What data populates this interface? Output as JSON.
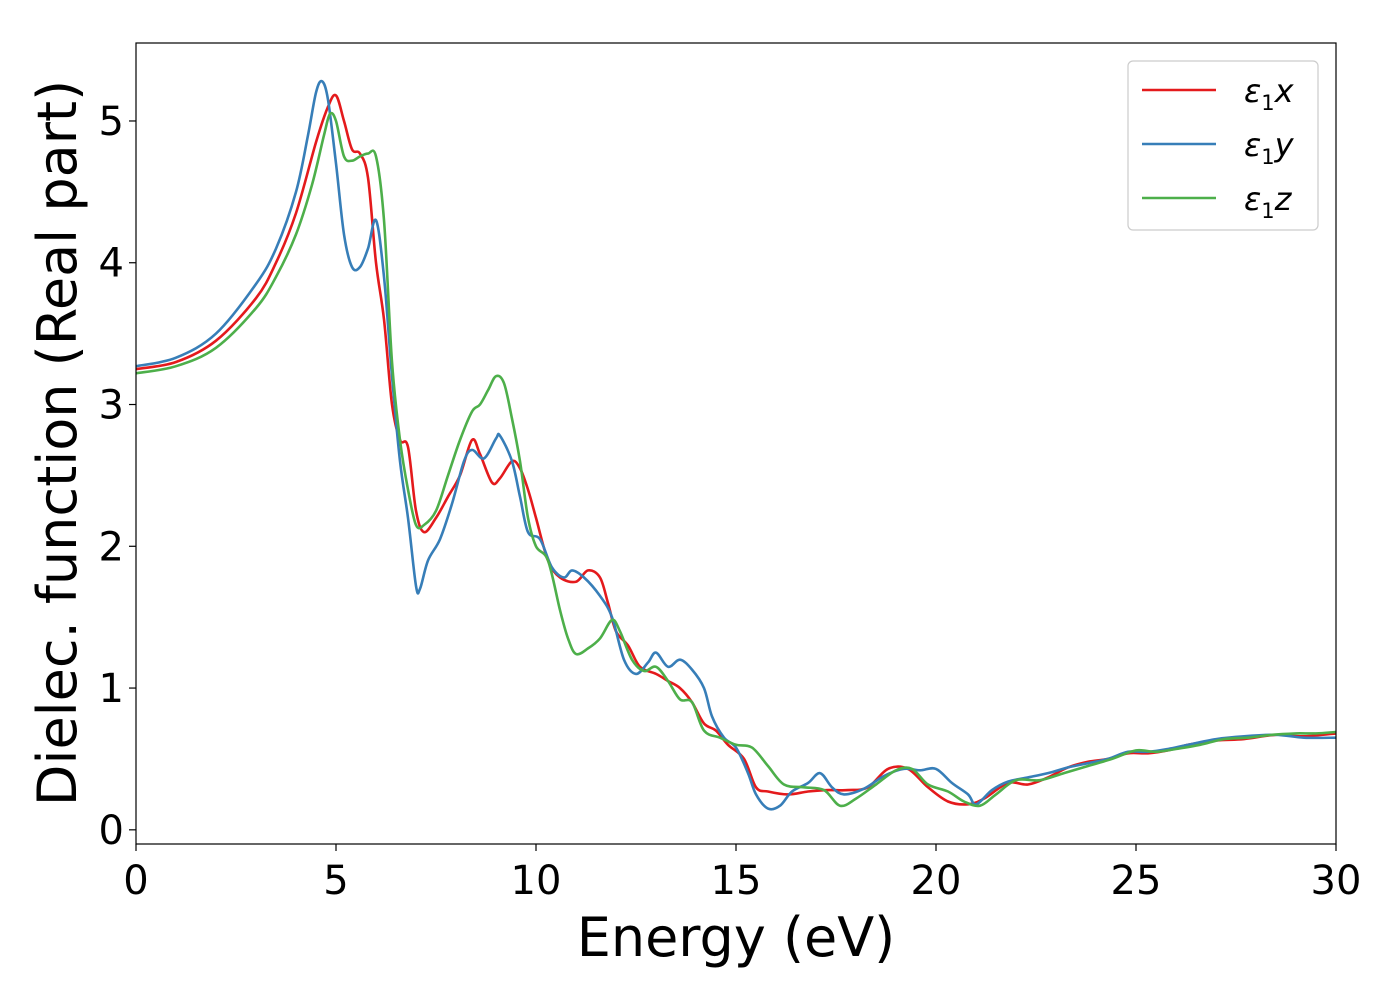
{
  "chart_data": {
    "type": "line",
    "xlabel": "Energy (eV)",
    "ylabel": "Dielec. function (Real part)",
    "xlim": [
      0,
      30
    ],
    "ylim": [
      -0.1,
      5.55
    ],
    "xticks": [
      0,
      5,
      10,
      15,
      20,
      25,
      30
    ],
    "yticks": [
      0,
      1,
      2,
      3,
      4,
      5
    ],
    "grid": false,
    "legend_position": "top-right",
    "series": [
      {
        "name": "ε1x",
        "legend": {
          "base": "ε",
          "sub": "1",
          "var": "x"
        },
        "color": "#e41a1c",
        "points": [
          [
            0,
            3.25
          ],
          [
            1,
            3.3
          ],
          [
            2,
            3.45
          ],
          [
            3,
            3.75
          ],
          [
            3.5,
            4.0
          ],
          [
            4,
            4.35
          ],
          [
            4.5,
            4.85
          ],
          [
            4.8,
            5.1
          ],
          [
            5.0,
            5.18
          ],
          [
            5.2,
            5.0
          ],
          [
            5.4,
            4.8
          ],
          [
            5.6,
            4.77
          ],
          [
            5.8,
            4.6
          ],
          [
            6.0,
            4.0
          ],
          [
            6.2,
            3.6
          ],
          [
            6.4,
            3.0
          ],
          [
            6.6,
            2.75
          ],
          [
            6.8,
            2.7
          ],
          [
            7.0,
            2.25
          ],
          [
            7.2,
            2.1
          ],
          [
            7.5,
            2.2
          ],
          [
            7.8,
            2.35
          ],
          [
            8.1,
            2.5
          ],
          [
            8.4,
            2.75
          ],
          [
            8.6,
            2.65
          ],
          [
            8.9,
            2.45
          ],
          [
            9.1,
            2.48
          ],
          [
            9.4,
            2.6
          ],
          [
            9.6,
            2.55
          ],
          [
            9.8,
            2.4
          ],
          [
            10.0,
            2.2
          ],
          [
            10.3,
            1.9
          ],
          [
            10.6,
            1.78
          ],
          [
            11.0,
            1.75
          ],
          [
            11.3,
            1.83
          ],
          [
            11.6,
            1.78
          ],
          [
            11.8,
            1.6
          ],
          [
            12.0,
            1.4
          ],
          [
            12.3,
            1.3
          ],
          [
            12.6,
            1.15
          ],
          [
            13.0,
            1.1
          ],
          [
            13.3,
            1.05
          ],
          [
            13.6,
            1.0
          ],
          [
            13.9,
            0.9
          ],
          [
            14.2,
            0.75
          ],
          [
            14.5,
            0.7
          ],
          [
            14.8,
            0.6
          ],
          [
            15.2,
            0.5
          ],
          [
            15.5,
            0.3
          ],
          [
            15.8,
            0.27
          ],
          [
            16.3,
            0.25
          ],
          [
            16.8,
            0.27
          ],
          [
            17.3,
            0.28
          ],
          [
            17.8,
            0.28
          ],
          [
            18.3,
            0.3
          ],
          [
            18.8,
            0.43
          ],
          [
            19.3,
            0.43
          ],
          [
            19.8,
            0.3
          ],
          [
            20.3,
            0.2
          ],
          [
            20.8,
            0.18
          ],
          [
            21.2,
            0.22
          ],
          [
            21.8,
            0.33
          ],
          [
            22.3,
            0.32
          ],
          [
            22.8,
            0.37
          ],
          [
            23.3,
            0.44
          ],
          [
            23.8,
            0.48
          ],
          [
            24.3,
            0.5
          ],
          [
            24.8,
            0.54
          ],
          [
            25.3,
            0.54
          ],
          [
            25.8,
            0.56
          ],
          [
            26.3,
            0.6
          ],
          [
            27,
            0.63
          ],
          [
            27.7,
            0.64
          ],
          [
            28.5,
            0.67
          ],
          [
            29.2,
            0.66
          ],
          [
            30,
            0.68
          ]
        ]
      },
      {
        "name": "ε1y",
        "legend": {
          "base": "ε",
          "sub": "1",
          "var": "y"
        },
        "color": "#377eb8",
        "points": [
          [
            0,
            3.27
          ],
          [
            1,
            3.33
          ],
          [
            2,
            3.5
          ],
          [
            3,
            3.85
          ],
          [
            3.5,
            4.1
          ],
          [
            4,
            4.5
          ],
          [
            4.3,
            4.9
          ],
          [
            4.5,
            5.2
          ],
          [
            4.65,
            5.28
          ],
          [
            4.8,
            5.15
          ],
          [
            5.0,
            4.7
          ],
          [
            5.2,
            4.2
          ],
          [
            5.4,
            3.97
          ],
          [
            5.6,
            3.97
          ],
          [
            5.8,
            4.1
          ],
          [
            6.0,
            4.3
          ],
          [
            6.2,
            3.9
          ],
          [
            6.4,
            3.2
          ],
          [
            6.6,
            2.6
          ],
          [
            6.8,
            2.2
          ],
          [
            7.0,
            1.72
          ],
          [
            7.1,
            1.7
          ],
          [
            7.3,
            1.9
          ],
          [
            7.6,
            2.05
          ],
          [
            7.9,
            2.3
          ],
          [
            8.2,
            2.6
          ],
          [
            8.4,
            2.68
          ],
          [
            8.7,
            2.62
          ],
          [
            9.0,
            2.76
          ],
          [
            9.1,
            2.78
          ],
          [
            9.4,
            2.6
          ],
          [
            9.6,
            2.35
          ],
          [
            9.8,
            2.1
          ],
          [
            10.1,
            2.05
          ],
          [
            10.4,
            1.85
          ],
          [
            10.7,
            1.78
          ],
          [
            10.9,
            1.83
          ],
          [
            11.2,
            1.78
          ],
          [
            11.6,
            1.65
          ],
          [
            11.9,
            1.5
          ],
          [
            12.2,
            1.2
          ],
          [
            12.5,
            1.1
          ],
          [
            12.8,
            1.18
          ],
          [
            13.0,
            1.25
          ],
          [
            13.3,
            1.15
          ],
          [
            13.6,
            1.2
          ],
          [
            13.9,
            1.13
          ],
          [
            14.2,
            1.0
          ],
          [
            14.4,
            0.8
          ],
          [
            14.7,
            0.65
          ],
          [
            15.0,
            0.58
          ],
          [
            15.3,
            0.4
          ],
          [
            15.5,
            0.25
          ],
          [
            15.8,
            0.15
          ],
          [
            16.1,
            0.17
          ],
          [
            16.4,
            0.27
          ],
          [
            16.8,
            0.33
          ],
          [
            17.1,
            0.4
          ],
          [
            17.4,
            0.3
          ],
          [
            17.7,
            0.25
          ],
          [
            18.2,
            0.29
          ],
          [
            18.7,
            0.38
          ],
          [
            19.2,
            0.43
          ],
          [
            19.6,
            0.42
          ],
          [
            20.0,
            0.43
          ],
          [
            20.4,
            0.33
          ],
          [
            20.8,
            0.25
          ],
          [
            21.0,
            0.18
          ],
          [
            21.4,
            0.28
          ],
          [
            21.8,
            0.34
          ],
          [
            22.3,
            0.37
          ],
          [
            22.8,
            0.4
          ],
          [
            23.3,
            0.44
          ],
          [
            23.8,
            0.47
          ],
          [
            24.3,
            0.5
          ],
          [
            24.8,
            0.55
          ],
          [
            25.3,
            0.55
          ],
          [
            25.8,
            0.57
          ],
          [
            26.3,
            0.6
          ],
          [
            27,
            0.64
          ],
          [
            27.7,
            0.66
          ],
          [
            28.5,
            0.67
          ],
          [
            29.2,
            0.65
          ],
          [
            30,
            0.65
          ]
        ]
      },
      {
        "name": "ε1z",
        "legend": {
          "base": "ε",
          "sub": "1",
          "var": "z"
        },
        "color": "#4daf4a",
        "points": [
          [
            0,
            3.22
          ],
          [
            1,
            3.27
          ],
          [
            2,
            3.4
          ],
          [
            3,
            3.68
          ],
          [
            3.5,
            3.9
          ],
          [
            4,
            4.2
          ],
          [
            4.4,
            4.55
          ],
          [
            4.7,
            4.9
          ],
          [
            4.85,
            5.05
          ],
          [
            5.0,
            5.0
          ],
          [
            5.2,
            4.75
          ],
          [
            5.4,
            4.72
          ],
          [
            5.6,
            4.75
          ],
          [
            5.8,
            4.77
          ],
          [
            6.0,
            4.75
          ],
          [
            6.2,
            4.3
          ],
          [
            6.4,
            3.3
          ],
          [
            6.6,
            2.75
          ],
          [
            6.8,
            2.4
          ],
          [
            7.0,
            2.15
          ],
          [
            7.2,
            2.15
          ],
          [
            7.5,
            2.25
          ],
          [
            7.8,
            2.5
          ],
          [
            8.1,
            2.75
          ],
          [
            8.4,
            2.95
          ],
          [
            8.6,
            3.0
          ],
          [
            8.8,
            3.1
          ],
          [
            9.0,
            3.2
          ],
          [
            9.2,
            3.15
          ],
          [
            9.4,
            2.9
          ],
          [
            9.6,
            2.6
          ],
          [
            9.8,
            2.2
          ],
          [
            10.0,
            2.0
          ],
          [
            10.3,
            1.9
          ],
          [
            10.6,
            1.55
          ],
          [
            10.8,
            1.35
          ],
          [
            11.0,
            1.24
          ],
          [
            11.3,
            1.28
          ],
          [
            11.6,
            1.35
          ],
          [
            11.9,
            1.48
          ],
          [
            12.1,
            1.4
          ],
          [
            12.4,
            1.2
          ],
          [
            12.7,
            1.12
          ],
          [
            13.0,
            1.15
          ],
          [
            13.3,
            1.05
          ],
          [
            13.6,
            0.92
          ],
          [
            13.9,
            0.9
          ],
          [
            14.2,
            0.7
          ],
          [
            14.6,
            0.65
          ],
          [
            15.0,
            0.6
          ],
          [
            15.4,
            0.58
          ],
          [
            15.8,
            0.45
          ],
          [
            16.2,
            0.32
          ],
          [
            16.7,
            0.3
          ],
          [
            17.2,
            0.28
          ],
          [
            17.6,
            0.17
          ],
          [
            18.0,
            0.22
          ],
          [
            18.5,
            0.32
          ],
          [
            19.0,
            0.42
          ],
          [
            19.4,
            0.43
          ],
          [
            19.8,
            0.32
          ],
          [
            20.3,
            0.27
          ],
          [
            20.7,
            0.2
          ],
          [
            21.1,
            0.17
          ],
          [
            21.5,
            0.25
          ],
          [
            22.0,
            0.35
          ],
          [
            22.6,
            0.35
          ],
          [
            23.2,
            0.4
          ],
          [
            23.8,
            0.45
          ],
          [
            24.4,
            0.5
          ],
          [
            25.0,
            0.56
          ],
          [
            25.5,
            0.55
          ],
          [
            26.0,
            0.57
          ],
          [
            26.6,
            0.6
          ],
          [
            27.2,
            0.64
          ],
          [
            27.8,
            0.65
          ],
          [
            28.4,
            0.67
          ],
          [
            29.0,
            0.68
          ],
          [
            29.5,
            0.68
          ],
          [
            30,
            0.69
          ]
        ]
      }
    ]
  }
}
